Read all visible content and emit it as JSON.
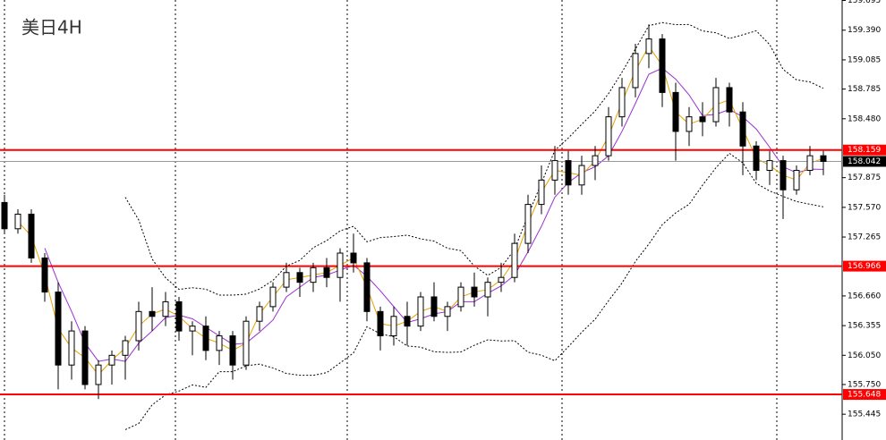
{
  "chart_data": {
    "type": "candlestick",
    "title": "美日4H",
    "open": [
      157.62,
      157.35,
      157.5,
      157.05,
      156.7,
      155.95,
      156.3,
      155.75,
      155.95,
      156.05,
      156.2,
      156.5,
      156.45,
      156.6,
      156.3,
      156.35,
      156.1,
      156.25,
      155.95,
      156.4,
      156.55,
      156.75,
      156.9,
      156.8,
      156.95,
      156.85,
      157.1,
      157.0,
      156.5,
      156.25,
      156.45,
      156.35,
      156.65,
      156.45,
      156.55,
      156.75,
      156.65,
      156.8,
      156.85,
      157.2,
      157.6,
      157.85,
      158.05,
      157.8,
      158.0,
      158.1,
      158.5,
      158.8,
      159.15,
      159.3,
      158.75,
      158.35,
      158.5,
      158.45,
      158.8,
      158.55,
      158.2,
      157.95,
      158.05,
      157.75,
      157.95,
      158.1
    ],
    "high": [
      157.7,
      157.55,
      157.55,
      157.1,
      156.8,
      156.4,
      156.35,
      156.0,
      156.1,
      156.25,
      156.6,
      156.75,
      156.7,
      156.65,
      156.4,
      156.45,
      156.3,
      156.3,
      156.45,
      156.6,
      156.8,
      157.0,
      156.95,
      157.0,
      157.05,
      157.15,
      157.3,
      157.05,
      156.55,
      156.55,
      156.6,
      156.7,
      156.8,
      156.6,
      156.8,
      156.9,
      156.85,
      157.0,
      157.3,
      157.7,
      158.0,
      158.2,
      158.15,
      158.1,
      158.2,
      158.6,
      158.9,
      159.25,
      159.45,
      159.35,
      158.85,
      158.6,
      158.65,
      158.9,
      158.85,
      158.65,
      158.25,
      158.15,
      158.1,
      158.0,
      158.2,
      158.15
    ],
    "low": [
      157.3,
      157.3,
      157.0,
      156.6,
      155.7,
      155.8,
      155.7,
      155.6,
      155.75,
      155.8,
      156.1,
      156.3,
      156.35,
      156.2,
      156.05,
      156.0,
      155.95,
      155.8,
      155.9,
      156.3,
      156.5,
      156.7,
      156.65,
      156.7,
      156.75,
      156.6,
      156.9,
      156.4,
      156.1,
      156.15,
      156.15,
      156.3,
      156.4,
      156.3,
      156.5,
      156.55,
      156.45,
      156.7,
      156.8,
      157.1,
      157.5,
      157.7,
      157.7,
      157.7,
      157.85,
      158.05,
      158.4,
      158.7,
      159.0,
      158.6,
      158.05,
      158.2,
      158.3,
      158.4,
      158.4,
      157.9,
      157.85,
      157.8,
      157.45,
      157.7,
      157.9,
      157.9
    ],
    "close": [
      157.35,
      157.5,
      157.05,
      156.7,
      155.95,
      156.3,
      155.75,
      155.95,
      156.05,
      156.2,
      156.5,
      156.45,
      156.6,
      156.3,
      156.35,
      156.1,
      156.25,
      155.95,
      156.4,
      156.55,
      156.75,
      156.9,
      156.8,
      156.95,
      156.85,
      157.1,
      157.0,
      156.5,
      156.25,
      156.45,
      156.35,
      156.65,
      156.45,
      156.55,
      156.75,
      156.65,
      156.8,
      156.85,
      157.2,
      157.6,
      157.85,
      158.05,
      157.8,
      158.0,
      158.1,
      158.5,
      158.8,
      159.15,
      159.3,
      158.75,
      158.35,
      158.5,
      158.45,
      158.8,
      158.55,
      158.2,
      157.95,
      158.05,
      157.75,
      157.95,
      158.1,
      158.042
    ],
    "ylim": [
      155.18,
      159.7
    ],
    "yticks": [
      {
        "value": 159.695,
        "label": "159.695"
      },
      {
        "value": 159.39,
        "label": "159.390"
      },
      {
        "value": 159.085,
        "label": "159.085"
      },
      {
        "value": 158.785,
        "label": "158.785"
      },
      {
        "value": 158.48,
        "label": "158.480"
      },
      {
        "value": 157.875,
        "label": "157.875"
      },
      {
        "value": 157.57,
        "label": "157.570"
      },
      {
        "value": 157.265,
        "label": "157.265"
      },
      {
        "value": 156.66,
        "label": "156.660"
      },
      {
        "value": 156.355,
        "label": "156.355"
      },
      {
        "value": 156.05,
        "label": "156.050"
      },
      {
        "value": 155.75,
        "label": "155.750"
      },
      {
        "value": 155.445,
        "label": "155.445"
      }
    ],
    "hlines": [
      158.159,
      156.966,
      155.648
    ],
    "hline_color": "#ff0000",
    "last_price": 158.042
  }
}
